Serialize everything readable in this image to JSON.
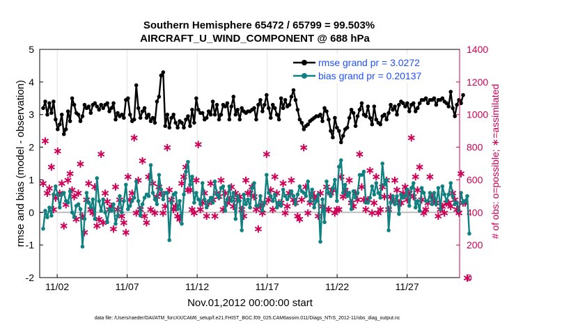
{
  "chart_data": {
    "type": "line",
    "title": "Southern Hemisphere 65472 / 65799 = 99.503%",
    "subtitle": "AIRCRAFT_U_WIND_COMPONENT @ 688 hPa",
    "xlabel": "Nov.01,2012 00:00:00 start",
    "ylabel": "rmse and bias (model - observation)",
    "ylabel_right": "# of obs: o=possible; ∗=assimilated",
    "x_tick_labels": [
      "11/02",
      "11/07",
      "11/12",
      "11/17",
      "11/22",
      "11/27"
    ],
    "x_tick_days": [
      2,
      7,
      12,
      17,
      22,
      27
    ],
    "xlim": [
      0.75,
      30.75
    ],
    "ylim": [
      -2,
      5
    ],
    "y_ticks": [
      -2,
      -1,
      0,
      1,
      2,
      3,
      4,
      5
    ],
    "ylim_right": [
      0,
      1400
    ],
    "y_ticks_right": [
      0,
      200,
      400,
      600,
      800,
      1000,
      1200,
      1400
    ],
    "legend_position": "top-right",
    "footer": "data file: /Users/raeder/DAI/ATM_forcXX/CAM6_setup/f.e21.FHIST_BGC.f09_025.CAM6assim.011/Diags_NTrS_2012-11/obs_diag_output.nc",
    "series": [
      {
        "name": "rmse grand pr = 3.0272",
        "color": "#000000",
        "values": [
          3.2,
          3.4,
          3.0,
          3.35,
          3.05,
          3.4,
          2.85,
          2.55,
          2.7,
          3.0,
          2.4,
          2.55,
          3.1,
          2.8,
          3.5,
          3.3,
          3.05,
          3.0,
          2.8,
          2.95,
          3.3,
          3.2,
          3.25,
          3.05,
          3.3,
          3.35,
          3.25,
          3.15,
          3.3,
          3.2,
          3.3,
          3.35,
          3.1,
          3.2,
          3.35,
          2.85,
          3.05,
          2.95,
          3.0,
          2.9,
          3.45,
          3.5,
          3.0,
          2.8,
          2.85,
          3.9,
          3.2,
          2.9,
          3.1,
          3.2,
          2.9,
          3.0,
          2.8,
          2.9,
          2.75,
          3.4,
          3.55,
          4.2,
          4.3,
          2.65,
          3.0,
          2.6,
          2.9,
          3.0,
          2.75,
          2.6,
          2.8,
          2.75,
          2.6,
          2.85,
          2.95,
          2.65,
          3.15,
          2.75,
          3.5,
          3.15,
          3.05,
          3.05,
          2.85,
          2.9,
          3.1,
          3.0,
          3.4,
          3.0,
          3.3,
          2.85,
          3.0,
          3.3,
          3.25,
          3.35,
          2.85,
          3.25,
          3.55,
          3.0,
          3.15,
          2.85,
          3.2,
          3.1,
          3.05,
          3.1,
          3.1,
          3.15,
          3.2,
          2.85,
          3.3,
          3.45,
          3.1,
          3.3,
          3.6,
          3.2,
          2.9,
          3.3,
          3.2,
          3.0,
          2.85,
          3.5,
          3.2,
          3.45,
          3.25,
          3.3,
          3.55,
          3.75,
          3.45,
          3.15,
          2.85,
          2.75,
          2.55,
          2.65,
          2.7,
          2.8,
          2.85,
          2.9,
          2.95,
          2.95,
          3.0,
          2.8,
          3.2,
          3.1,
          2.85,
          2.5,
          2.3,
          2.9,
          2.6,
          2.5,
          2.15,
          2.35,
          2.55,
          2.6,
          2.9,
          3.15,
          3.05,
          2.65,
          2.95,
          3.15,
          3.35,
          3.0,
          2.95,
          3.25,
          2.9,
          2.7,
          3.25,
          2.85,
          2.75,
          2.7,
          2.95,
          3.0,
          2.85,
          3.05,
          3.3,
          3.15,
          3.25,
          3.0,
          3.3,
          3.4,
          3.35,
          3.25,
          3.35,
          3.1,
          3.3,
          3.35,
          3.1,
          3.2,
          3.35,
          3.45,
          3.45,
          3.5,
          3.35,
          3.45,
          3.45,
          3.5,
          3.3,
          3.45,
          3.45,
          3.5,
          3.4,
          3.35,
          3.25,
          3.7,
          3.2,
          2.95,
          3.3,
          3.45,
          3.35,
          3.6
        ]
      },
      {
        "name": "bias grand pr = 0.20137",
        "color": "#108080",
        "values": [
          -0.5,
          0.05,
          -0.15,
          0.15,
          -0.1,
          0.55,
          0.8,
          0.55,
          0.15,
          0.55,
          0.6,
          0.35,
          0.3,
          0.65,
          0.0,
          -0.15,
          0.2,
          0.25,
          0.1,
          -1.05,
          -0.2,
          0.6,
          0.3,
          0.15,
          0.4,
          -0.2,
          1.05,
          0.35,
          0.05,
          0.4,
          0.0,
          -0.3,
          0.1,
          0.05,
          0.25,
          -0.35,
          -0.1,
          0.5,
          0.0,
          0.35,
          0.85,
          0.1,
          0.2,
          0.35,
          0.45,
          0.95,
          0.35,
          -0.1,
          0.25,
          0.45,
          0.55,
          0.5,
          1.45,
          0.6,
          0.4,
          0.25,
          1.15,
          0.7,
          0.4,
          0.6,
          0.6,
          -0.85,
          0.3,
          0.55,
          0.6,
          0.1,
          0.35,
          -0.35,
          0.55,
          1.25,
          1.55,
          0.85,
          1.1,
          0.3,
          0.6,
          0.4,
          0.25,
          0.9,
          0.4,
          0.15,
          0.35,
          0.45,
          0.3,
          0.95,
          0.55,
          0.45,
          0.75,
          0.8,
          0.05,
          0.4,
          0.8,
          0.35,
          0.6,
          -0.2,
          0.5,
          0.35,
          -0.55,
          0.55,
          0.25,
          0.4,
          0.15,
          0.75,
          0.9,
          0.2,
          0.2,
          0.5,
          0.05,
          0.3,
          1.15,
          0.6,
          0.5,
          0.35,
          0.55,
          0.15,
          0.3,
          0.2,
          0.7,
          0.5,
          0.4,
          0.5,
          0.65,
          0.5,
          0.25,
          0.55,
          0.8,
          0.65,
          0.6,
          0.5,
          0.95,
          0.35,
          0.7,
          0.15,
          0.35,
          0.55,
          -0.9,
          0.4,
          -0.3,
          0.95,
          0.6,
          0.5,
          0.75,
          1.0,
          0.35,
          1.4,
          1.6,
          0.6,
          0.85,
          0.5,
          0.6,
          0.1,
          0.65,
          0.45,
          0.6,
          1.15,
          1.15,
          1.25,
          0.3,
          0.3,
          0.45,
          0.8,
          0.55,
          0.9,
          0.6,
          0.45,
          1.5,
          0.85,
          1.0,
          -0.55,
          0.3,
          0.5,
          0.25,
          0.5,
          -0.05,
          0.55,
          0.45,
          0.5,
          0.7,
          0.2,
          0.75,
          0.9,
          0.15,
          0.35,
          0.05,
          0.75,
          0.6,
          0.35,
          0.35,
          0.6,
          0.25,
          0.6,
          0.25,
          0.75,
          0.1,
          0.8,
          0.55,
          0.35,
          0.55,
          0.9,
          0.5,
          0.25,
          0.3,
          0.05,
          0.6,
          0.3,
          0.35,
          0.5,
          -0.65
        ]
      },
      {
        "name": "# of obs possible",
        "axis": "right",
        "color": "#cc0055",
        "values": [
          580,
          840,
          520,
          550,
          680,
          420,
          490,
          780,
          520,
          580,
          320,
          450,
          600,
          640,
          540,
          500,
          360,
          520,
          700,
          380,
          280,
          480,
          580,
          420,
          400,
          560,
          320,
          360,
          760,
          340,
          520,
          470,
          420,
          440,
          300,
          560,
          420,
          480,
          380,
          340,
          280,
          620,
          480,
          520,
          860,
          400,
          600,
          420,
          720,
          380,
          340,
          620,
          420,
          580,
          400,
          500,
          560,
          520,
          400,
          440,
          800,
          540,
          480,
          420,
          440,
          380,
          360,
          580,
          620,
          680,
          540,
          540,
          420,
          400,
          600,
          820,
          420,
          460,
          520,
          380,
          460,
          580,
          480,
          380,
          520,
          500,
          600,
          420,
          520,
          460,
          480,
          560,
          440,
          520,
          480,
          500,
          420,
          380,
          600,
          520,
          520,
          560,
          500,
          420,
          300,
          440,
          400,
          460,
          760,
          480,
          540,
          420,
          620,
          520,
          460,
          460,
          580,
          400,
          440,
          520,
          600,
          480,
          460,
          380,
          360,
          480,
          800,
          560,
          400,
          460,
          520,
          500,
          480,
          380,
          520,
          440,
          420,
          560,
          420,
          520,
          540,
          400,
          420,
          420,
          620,
          500,
          540,
          520,
          600,
          460,
          440,
          520,
          480,
          760,
          560,
          480,
          420,
          480,
          660,
          400,
          460,
          620,
          400,
          420,
          560,
          500,
          600,
          420,
          500,
          480,
          600,
          540,
          460,
          460,
          520,
          560,
          480,
          520,
          860,
          500,
          620,
          540,
          680,
          480,
          400,
          420,
          460,
          620,
          500,
          480,
          460,
          380,
          420,
          440,
          400,
          460,
          460,
          440,
          520,
          480,
          420,
          400,
          640,
          460,
          460,
          0
        ]
      }
    ]
  }
}
